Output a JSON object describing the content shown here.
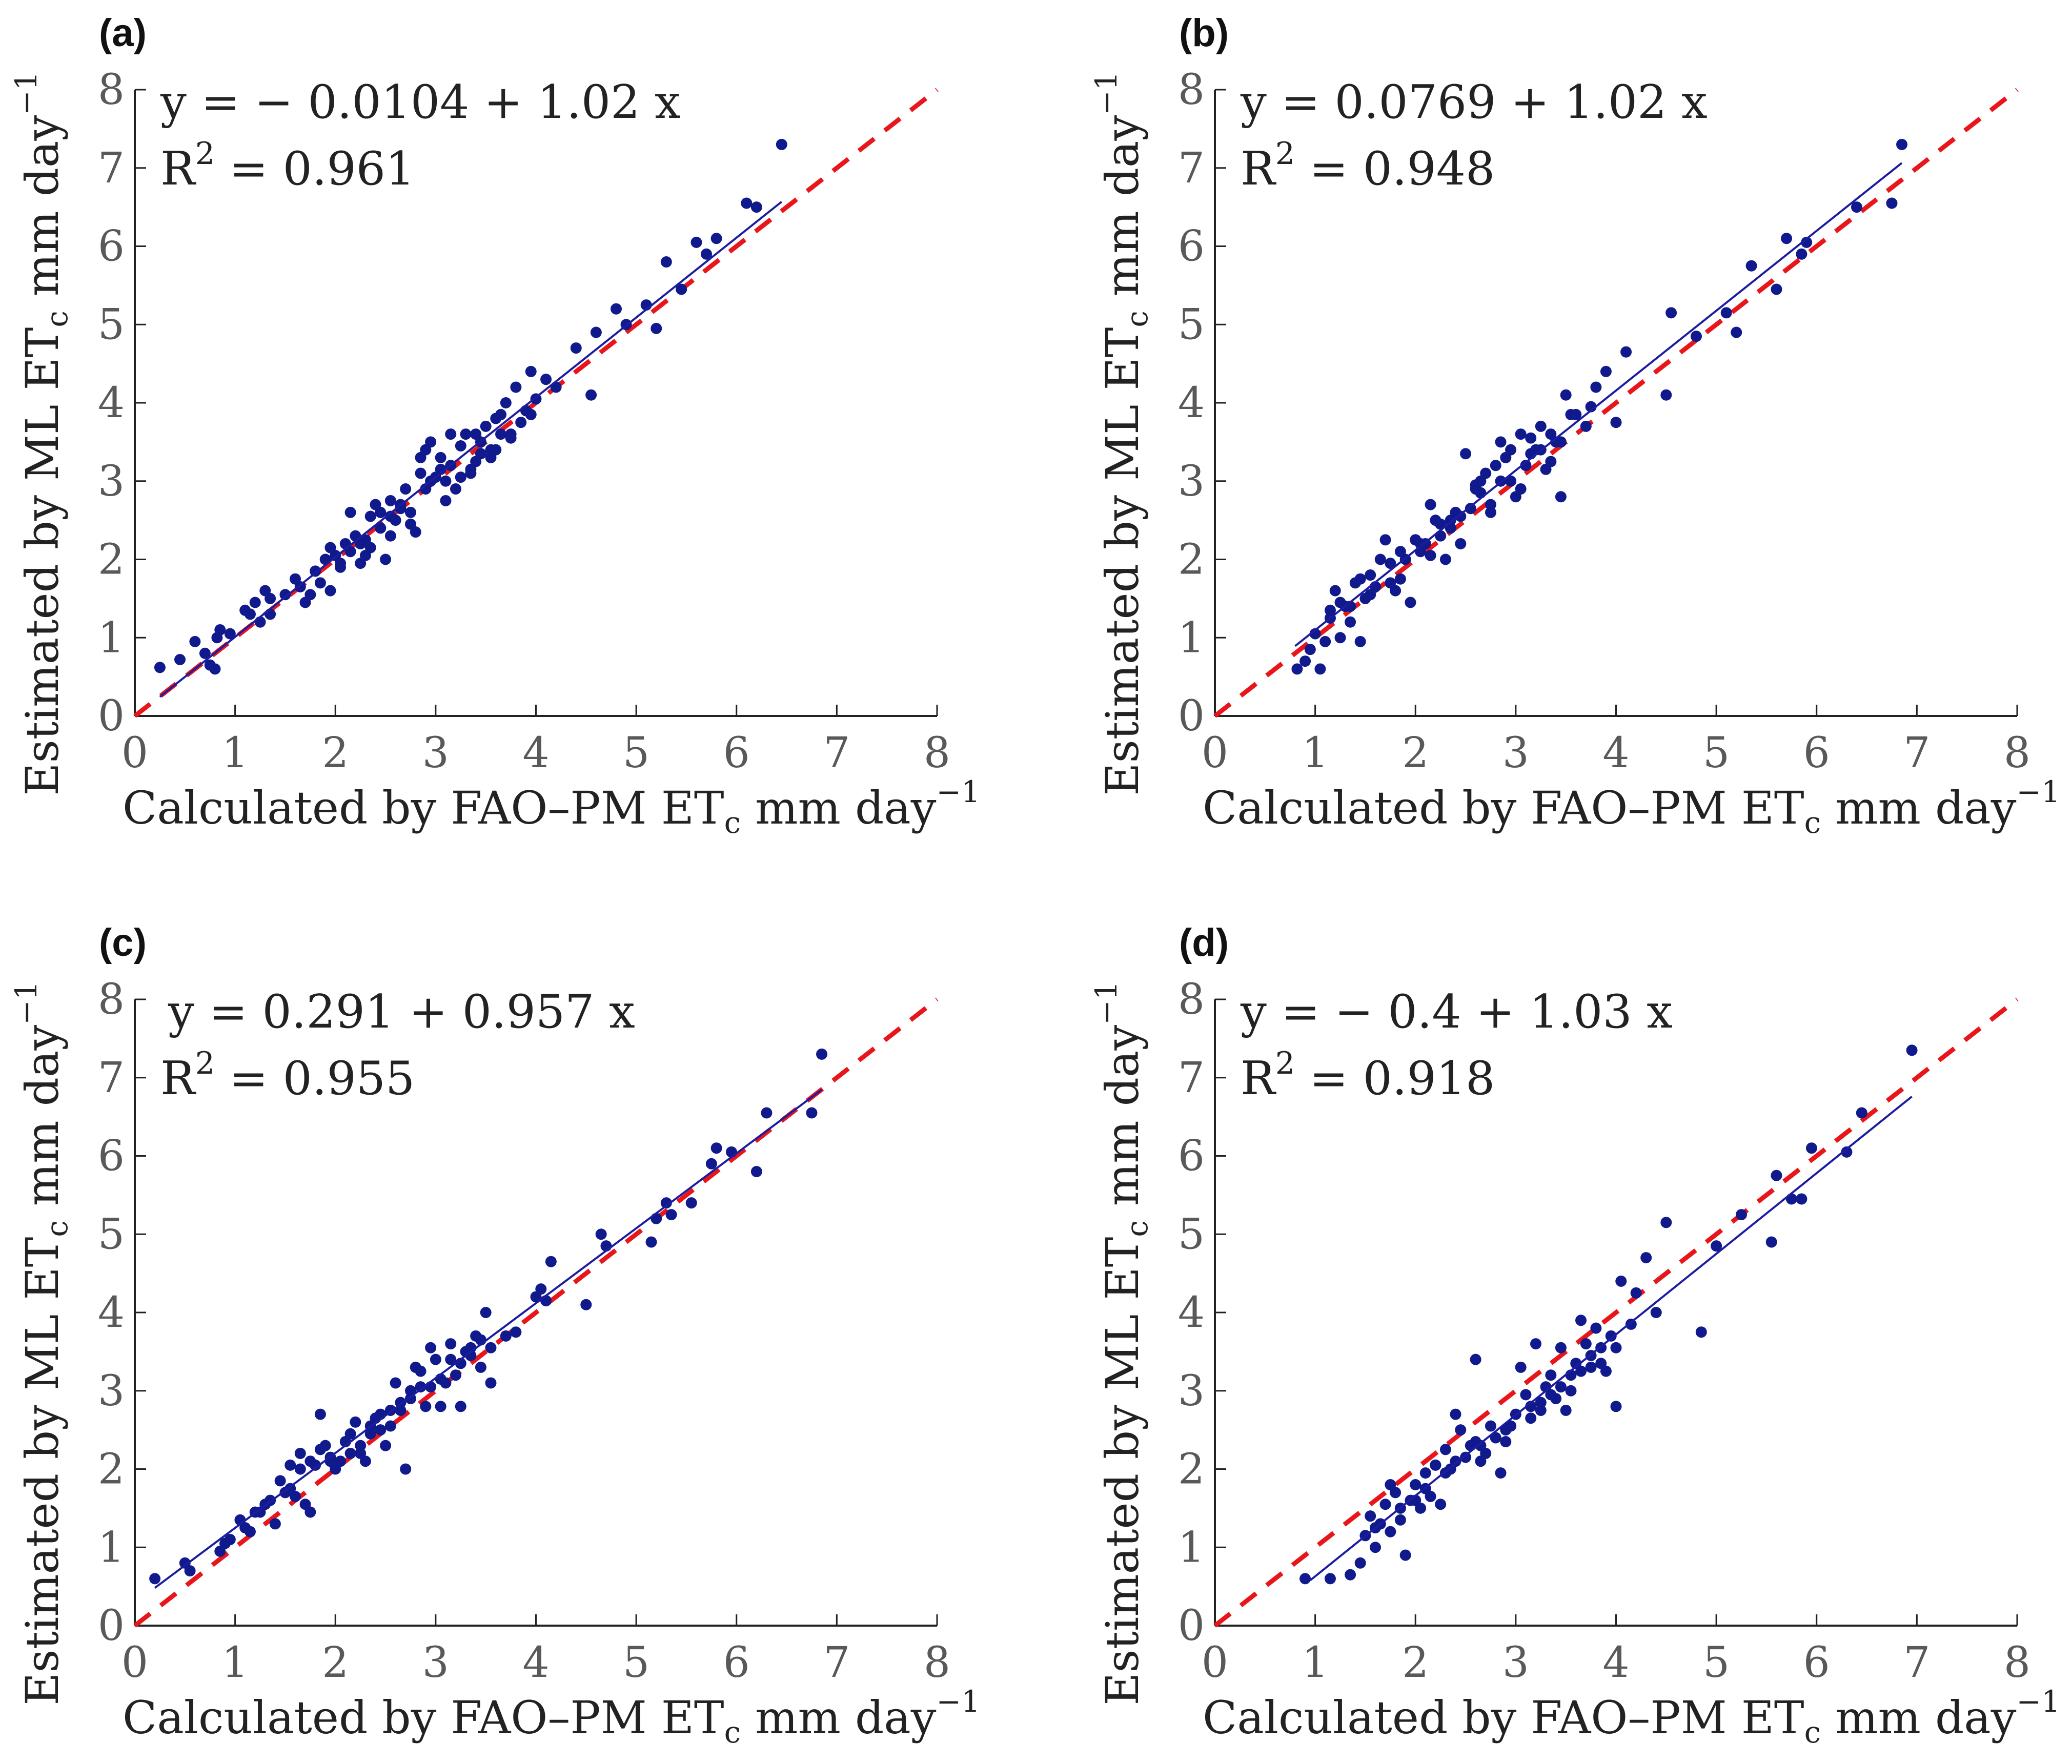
{
  "figure": {
    "colors": {
      "points": "#111a8c",
      "fit_line": "#1c1ca0",
      "identity_line": "#e8161b",
      "axis": "#222222"
    }
  },
  "chart_data": [
    {
      "type": "scatter",
      "panel": "(a)",
      "xlabel": "Calculated by FAO–PM ET_c mm day^-1",
      "ylabel": "Estimated by ML ET_c mm day^-1",
      "xlabel_parts": {
        "main": "Calculated by FAO–PM ET",
        "sub": "c",
        "unit": "mm day",
        "sup": "−1"
      },
      "ylabel_parts": {
        "main": "Estimated by ML ET",
        "sub": "c",
        "unit": "mm day",
        "sup": "−1"
      },
      "xlim": [
        0,
        8
      ],
      "ylim": [
        0,
        8
      ],
      "xticks": [
        "0",
        "1",
        "2",
        "3",
        "4",
        "5",
        "6",
        "7",
        "8"
      ],
      "yticks": [
        "0",
        "1",
        "2",
        "3",
        "4",
        "5",
        "6",
        "7",
        "8"
      ],
      "equation": "y = − 0.0104 + 1.02 x",
      "r2_label": "R",
      "r2_sup": "2",
      "r2_value": "= 0.961",
      "fit": {
        "intercept": -0.0104,
        "slope": 1.02,
        "x_range": [
          0.25,
          6.45
        ]
      },
      "identity_line": {
        "x_range": [
          0,
          8
        ]
      },
      "points": {
        "x": [
          0.25,
          0.45,
          0.6,
          0.7,
          0.75,
          0.8,
          0.82,
          0.85,
          1.1,
          1.2,
          1.25,
          1.3,
          1.35,
          1.5,
          1.6,
          1.7,
          1.75,
          1.8,
          1.85,
          1.9,
          1.95,
          2.0,
          2.05,
          2.1,
          2.15,
          2.2,
          2.25,
          2.3,
          2.35,
          2.4,
          2.45,
          2.5,
          2.55,
          2.6,
          2.65,
          2.7,
          2.75,
          2.8,
          2.85,
          2.9,
          2.95,
          3.0,
          3.05,
          3.1,
          3.15,
          3.2,
          3.25,
          3.3,
          3.35,
          3.4,
          3.45,
          3.5,
          3.55,
          3.6,
          3.65,
          3.7,
          3.75,
          3.8,
          3.85,
          3.9,
          3.95,
          4.0,
          4.1,
          4.2,
          4.4,
          4.55,
          4.6,
          4.8,
          4.9,
          5.1,
          5.2,
          5.3,
          5.45,
          5.6,
          5.7,
          5.8,
          6.1,
          6.2,
          6.45,
          2.15,
          2.35,
          2.55,
          2.75,
          2.95,
          3.15,
          3.35,
          3.55,
          3.75,
          3.95,
          1.65,
          1.95,
          2.25,
          2.45,
          2.65,
          2.85,
          3.05,
          3.25,
          3.45,
          3.65,
          1.15,
          1.35,
          0.95,
          2.05,
          2.55,
          3.1,
          3.6,
          2.3,
          2.9,
          3.4
        ],
        "y": [
          0.62,
          0.72,
          0.95,
          0.8,
          0.65,
          0.6,
          1.0,
          1.1,
          1.35,
          1.45,
          1.2,
          1.6,
          1.3,
          1.55,
          1.75,
          1.45,
          1.55,
          1.85,
          1.7,
          2.0,
          1.6,
          2.05,
          1.9,
          2.2,
          2.1,
          2.3,
          1.95,
          2.25,
          2.15,
          2.7,
          2.4,
          2.0,
          2.55,
          2.5,
          2.65,
          2.9,
          2.6,
          2.35,
          3.1,
          3.4,
          3.5,
          3.05,
          3.3,
          2.75,
          3.2,
          2.9,
          3.45,
          3.6,
          3.15,
          3.25,
          3.5,
          3.7,
          3.4,
          3.8,
          3.85,
          4.0,
          3.6,
          4.2,
          3.75,
          3.9,
          4.4,
          4.05,
          4.3,
          4.2,
          4.7,
          4.1,
          4.9,
          5.2,
          5.0,
          5.25,
          4.95,
          5.8,
          5.45,
          6.05,
          5.9,
          6.1,
          6.55,
          6.5,
          7.3,
          2.6,
          2.55,
          2.75,
          2.45,
          3.0,
          3.6,
          3.1,
          3.3,
          3.55,
          3.85,
          1.65,
          2.15,
          2.2,
          2.6,
          2.7,
          3.3,
          3.15,
          3.05,
          3.35,
          3.6,
          1.3,
          1.5,
          1.05,
          1.95,
          2.3,
          3.0,
          3.4,
          2.05,
          2.9,
          3.6
        ]
      }
    },
    {
      "type": "scatter",
      "panel": "(b)",
      "xlabel": "Calculated by FAO–PM ET_c mm day^-1",
      "ylabel": "Estimated by ML ET_c mm day^-1",
      "xlabel_parts": {
        "main": "Calculated by FAO–PM ET",
        "sub": "c",
        "unit": "mm day",
        "sup": "−1"
      },
      "ylabel_parts": {
        "main": "Estimated by ML ET",
        "sub": "c",
        "unit": "mm day",
        "sup": "−1"
      },
      "xlim": [
        0,
        8
      ],
      "ylim": [
        0,
        8
      ],
      "xticks": [
        "0",
        "1",
        "2",
        "3",
        "4",
        "5",
        "6",
        "7",
        "8"
      ],
      "yticks": [
        "0",
        "1",
        "2",
        "3",
        "4",
        "5",
        "6",
        "7",
        "8"
      ],
      "equation": "y = 0.0769 + 1.02 x",
      "r2_label": "R",
      "r2_sup": "2",
      "r2_value": "= 0.948",
      "fit": {
        "intercept": 0.0769,
        "slope": 1.02,
        "x_range": [
          0.8,
          6.85
        ]
      },
      "identity_line": {
        "x_range": [
          0,
          8
        ]
      },
      "points": {
        "x": [
          0.82,
          0.9,
          0.95,
          1.05,
          1.1,
          1.15,
          1.2,
          1.25,
          1.3,
          1.35,
          1.4,
          1.45,
          1.5,
          1.55,
          1.6,
          1.65,
          1.7,
          1.75,
          1.8,
          1.85,
          1.9,
          1.95,
          2.0,
          2.05,
          2.1,
          2.15,
          2.2,
          2.25,
          2.3,
          2.35,
          2.4,
          2.45,
          2.5,
          2.55,
          2.6,
          2.65,
          2.7,
          2.75,
          2.8,
          2.85,
          2.9,
          2.95,
          3.0,
          3.05,
          3.1,
          3.15,
          3.2,
          3.25,
          3.3,
          3.35,
          3.4,
          3.45,
          3.5,
          3.6,
          3.7,
          3.8,
          3.9,
          4.0,
          4.1,
          4.5,
          4.55,
          4.8,
          5.1,
          5.2,
          5.35,
          5.6,
          5.7,
          5.85,
          5.9,
          6.4,
          6.75,
          6.85,
          1.25,
          1.55,
          1.85,
          2.15,
          2.45,
          2.75,
          3.05,
          3.35,
          1.45,
          1.75,
          2.05,
          2.35,
          2.65,
          2.95,
          3.25,
          3.55,
          1.15,
          2.25,
          2.85,
          3.45,
          1.0,
          1.35,
          2.0,
          2.6,
          3.15,
          3.75
        ],
        "y": [
          0.6,
          0.7,
          0.85,
          0.6,
          0.95,
          1.35,
          1.6,
          1.0,
          1.4,
          1.2,
          1.7,
          0.95,
          1.5,
          1.8,
          1.65,
          2.0,
          2.25,
          1.7,
          1.6,
          2.1,
          2.0,
          1.45,
          2.25,
          2.1,
          2.2,
          2.7,
          2.5,
          2.3,
          2.0,
          2.4,
          2.6,
          2.55,
          3.35,
          2.65,
          2.9,
          3.0,
          3.1,
          2.7,
          3.2,
          3.5,
          3.3,
          3.4,
          2.8,
          3.6,
          3.2,
          3.55,
          3.4,
          3.7,
          3.15,
          3.6,
          3.5,
          2.8,
          4.1,
          3.85,
          3.7,
          4.2,
          4.4,
          3.75,
          4.65,
          4.1,
          5.15,
          4.85,
          5.15,
          4.9,
          5.75,
          5.45,
          6.1,
          5.9,
          6.05,
          6.5,
          6.55,
          7.3,
          1.45,
          1.55,
          1.75,
          2.05,
          2.2,
          2.6,
          2.9,
          3.25,
          1.75,
          1.95,
          2.2,
          2.5,
          2.85,
          3.0,
          3.4,
          3.85,
          1.25,
          2.45,
          3.0,
          3.5,
          1.05,
          1.4,
          2.25,
          2.95,
          3.35,
          3.95
        ]
      }
    },
    {
      "type": "scatter",
      "panel": "(c)",
      "xlabel": "Calculated by FAO–PM ET_c mm day^-1",
      "ylabel": "Estimated by ML ET_c mm day^-1",
      "xlabel_parts": {
        "main": "Calculated by FAO–PM ET",
        "sub": "c",
        "unit": "mm day",
        "sup": "−1"
      },
      "ylabel_parts": {
        "main": "Estimated by ML ET",
        "sub": "c",
        "unit": "mm day",
        "sup": "−1"
      },
      "xlim": [
        0,
        8
      ],
      "ylim": [
        0,
        8
      ],
      "xticks": [
        "0",
        "1",
        "2",
        "3",
        "4",
        "5",
        "6",
        "7",
        "8"
      ],
      "yticks": [
        "0",
        "1",
        "2",
        "3",
        "4",
        "5",
        "6",
        "7",
        "8"
      ],
      "equation": "y = 0.291 + 0.957 x",
      "r2_label": "R",
      "r2_sup": "2",
      "r2_value": "= 0.955",
      "fit": {
        "intercept": 0.291,
        "slope": 0.957,
        "x_range": [
          0.2,
          6.85
        ]
      },
      "identity_line": {
        "x_range": [
          0,
          8
        ]
      },
      "points": {
        "x": [
          0.2,
          0.5,
          0.55,
          0.85,
          0.9,
          0.95,
          1.05,
          1.1,
          1.15,
          1.2,
          1.3,
          1.35,
          1.4,
          1.45,
          1.5,
          1.55,
          1.6,
          1.65,
          1.7,
          1.75,
          1.8,
          1.85,
          1.9,
          1.95,
          2.0,
          2.05,
          2.1,
          2.15,
          2.2,
          2.25,
          2.3,
          2.35,
          2.4,
          2.45,
          2.5,
          2.55,
          2.6,
          2.65,
          2.7,
          2.75,
          2.8,
          2.85,
          2.9,
          2.95,
          3.0,
          3.05,
          3.1,
          3.15,
          3.2,
          3.25,
          3.3,
          3.35,
          3.4,
          3.45,
          3.5,
          3.55,
          3.7,
          3.8,
          4.0,
          4.05,
          4.1,
          4.15,
          4.5,
          4.65,
          4.7,
          5.15,
          5.2,
          5.3,
          5.35,
          5.55,
          5.75,
          5.8,
          5.95,
          6.2,
          6.3,
          6.75,
          6.85,
          1.55,
          1.85,
          2.15,
          2.45,
          2.75,
          3.05,
          3.35,
          1.65,
          1.95,
          2.25,
          2.55,
          2.85,
          3.15,
          3.45,
          1.25,
          1.75,
          2.35,
          2.65,
          2.95,
          3.25,
          3.55
        ],
        "y": [
          0.6,
          0.8,
          0.7,
          0.95,
          1.05,
          1.1,
          1.35,
          1.25,
          1.2,
          1.45,
          1.55,
          1.6,
          1.3,
          1.85,
          1.7,
          1.75,
          1.65,
          2.0,
          1.55,
          1.45,
          2.05,
          2.7,
          2.3,
          2.15,
          2.0,
          2.1,
          2.35,
          2.45,
          2.6,
          2.2,
          2.1,
          2.45,
          2.65,
          2.5,
          2.3,
          2.55,
          3.1,
          2.75,
          2.0,
          2.9,
          3.3,
          3.25,
          2.8,
          3.55,
          3.4,
          2.8,
          3.1,
          3.6,
          3.2,
          2.8,
          3.5,
          3.55,
          3.7,
          3.3,
          4.0,
          3.1,
          3.7,
          3.75,
          4.2,
          4.3,
          4.15,
          4.65,
          4.1,
          5.0,
          4.85,
          4.9,
          5.2,
          5.4,
          5.25,
          5.4,
          5.9,
          6.1,
          6.05,
          5.8,
          6.55,
          6.55,
          7.3,
          2.05,
          2.25,
          2.2,
          2.7,
          3.0,
          3.15,
          3.45,
          2.2,
          2.1,
          2.3,
          2.75,
          3.05,
          3.4,
          3.65,
          1.45,
          2.1,
          2.55,
          2.85,
          3.05,
          3.35,
          3.55
        ]
      }
    },
    {
      "type": "scatter",
      "panel": "(d)",
      "xlabel": "Calculated by FAO–PM ET_c mm day^-1",
      "ylabel": "Estimated by ML ET_c mm day^-1",
      "xlabel_parts": {
        "main": "Calculated by FAO–PM ET",
        "sub": "c",
        "unit": "mm day",
        "sup": "−1"
      },
      "ylabel_parts": {
        "main": "Estimated by ML ET",
        "sub": "c",
        "unit": "mm day",
        "sup": "−1"
      },
      "xlim": [
        0,
        8
      ],
      "ylim": [
        0,
        8
      ],
      "xticks": [
        "0",
        "1",
        "2",
        "3",
        "4",
        "5",
        "6",
        "7",
        "8"
      ],
      "yticks": [
        "0",
        "1",
        "2",
        "3",
        "4",
        "5",
        "6",
        "7",
        "8"
      ],
      "equation": "y = − 0.4 + 1.03 x",
      "r2_label": "R",
      "r2_sup": "2",
      "r2_value": "= 0.918",
      "fit": {
        "intercept": -0.4,
        "slope": 1.03,
        "x_range": [
          0.95,
          6.95
        ]
      },
      "identity_line": {
        "x_range": [
          0,
          8
        ]
      },
      "points": {
        "x": [
          0.9,
          1.15,
          1.35,
          1.45,
          1.5,
          1.55,
          1.6,
          1.65,
          1.7,
          1.75,
          1.8,
          1.85,
          1.9,
          1.95,
          2.0,
          2.05,
          2.1,
          2.15,
          2.2,
          2.25,
          2.3,
          2.35,
          2.4,
          2.45,
          2.5,
          2.55,
          2.6,
          2.65,
          2.7,
          2.75,
          2.8,
          2.85,
          2.9,
          2.95,
          3.0,
          3.05,
          3.1,
          3.15,
          3.2,
          3.25,
          3.3,
          3.35,
          3.4,
          3.45,
          3.5,
          3.55,
          3.6,
          3.65,
          3.7,
          3.75,
          3.8,
          3.85,
          3.9,
          3.95,
          4.0,
          4.05,
          4.15,
          4.2,
          4.3,
          4.4,
          4.5,
          4.85,
          5.0,
          5.25,
          5.55,
          5.6,
          5.75,
          5.85,
          5.95,
          6.3,
          6.45,
          6.95,
          1.6,
          1.85,
          2.1,
          2.4,
          2.65,
          2.95,
          3.25,
          3.55,
          3.85,
          1.75,
          2.0,
          2.3,
          2.6,
          2.9,
          3.15,
          3.45,
          3.75,
          4.0,
          2.2,
          2.8,
          3.35,
          3.65
        ],
        "y": [
          0.6,
          0.6,
          0.65,
          0.8,
          1.15,
          1.4,
          1.0,
          1.3,
          1.55,
          1.2,
          1.7,
          1.35,
          0.9,
          1.6,
          1.8,
          1.5,
          1.95,
          1.65,
          2.05,
          1.55,
          2.25,
          2.0,
          2.7,
          2.5,
          2.15,
          2.3,
          3.4,
          2.1,
          2.2,
          2.55,
          2.4,
          1.95,
          2.35,
          2.55,
          2.7,
          3.3,
          2.95,
          2.65,
          3.6,
          2.85,
          3.05,
          3.2,
          2.9,
          3.55,
          2.75,
          3.2,
          3.35,
          3.9,
          3.6,
          3.45,
          3.8,
          3.55,
          3.25,
          3.7,
          2.8,
          4.4,
          3.85,
          4.25,
          4.7,
          4.0,
          5.15,
          3.75,
          4.85,
          5.25,
          4.9,
          5.75,
          5.45,
          5.45,
          6.1,
          6.05,
          6.55,
          7.35,
          1.25,
          1.5,
          1.75,
          2.1,
          2.3,
          2.55,
          2.75,
          3.0,
          3.35,
          1.8,
          1.6,
          1.95,
          2.35,
          2.5,
          2.8,
          3.05,
          3.3,
          3.55,
          2.05,
          2.4,
          2.95,
          3.25
        ]
      }
    }
  ]
}
